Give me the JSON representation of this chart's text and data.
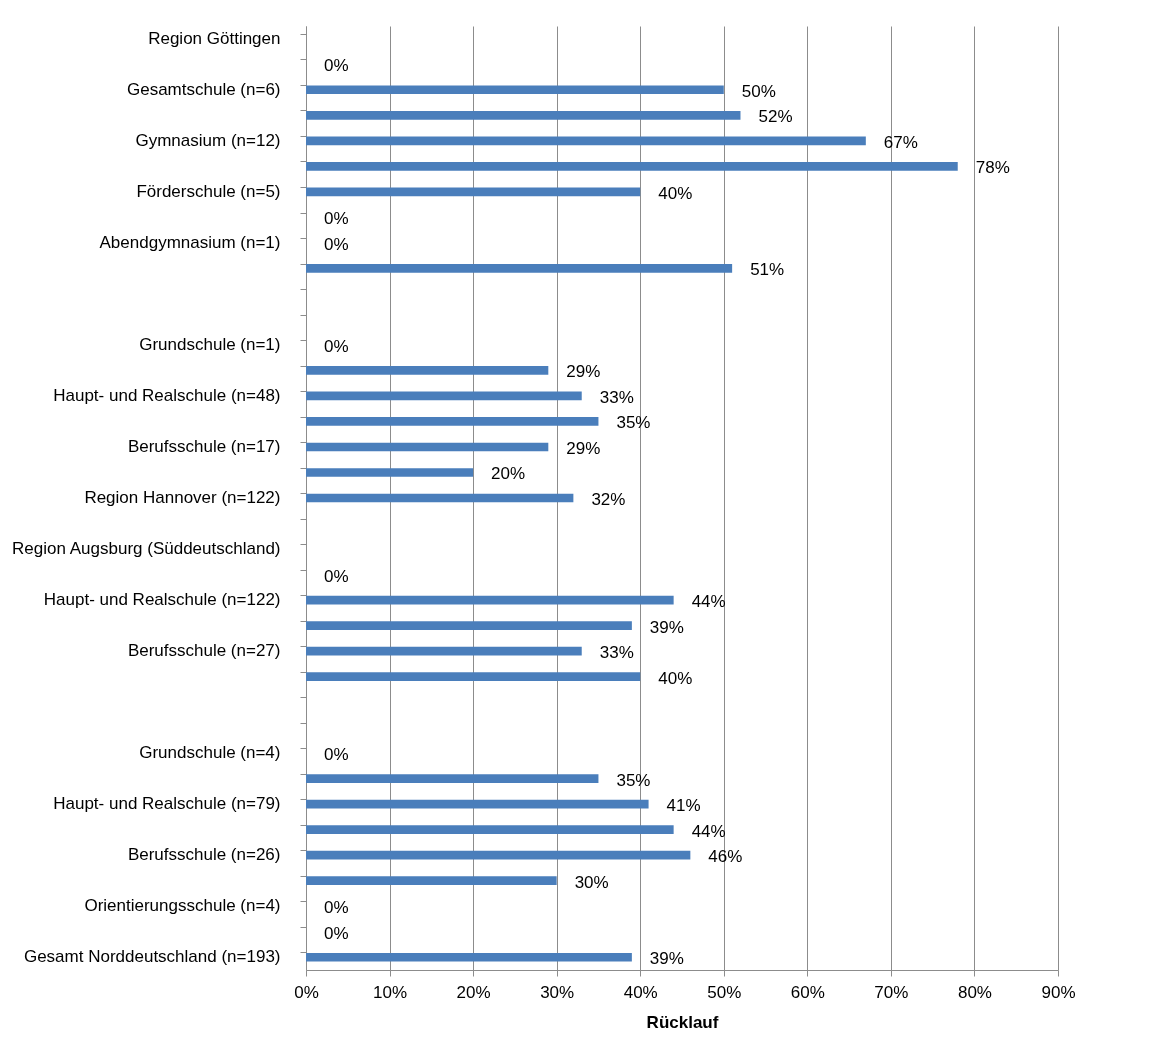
{
  "chart_data": {
    "type": "bar",
    "orientation": "horizontal",
    "xlabel": "Rücklauf",
    "categories": [
      "Region Göttingen",
      null,
      "Gesamtschule (n=6)",
      null,
      "Gymnasium (n=12)",
      null,
      "Förderschule (n=5)",
      null,
      "Abendgymnasium (n=1)",
      null,
      null,
      null,
      "Grundschule (n=1)",
      null,
      "Haupt- und Realschule (n=48)",
      null,
      "Berufsschule (n=17)",
      null,
      "Region Hannover (n=122)",
      null,
      "Region Augsburg (Süddeutschland)",
      null,
      "Haupt- und Realschule (n=122)",
      null,
      "Berufsschule (n=27)",
      null,
      null,
      null,
      "Grundschule (n=4)",
      null,
      "Haupt- und Realschule (n=79)",
      null,
      "Berufsschule (n=26)",
      null,
      "Orientierungsschule (n=4)",
      null,
      "Gesamt Norddeutschland (n=193)"
    ],
    "values": [
      null,
      0,
      50,
      52,
      67,
      78,
      40,
      0,
      0,
      51,
      null,
      null,
      0,
      29,
      33,
      35,
      29,
      20,
      32,
      null,
      null,
      0,
      44,
      39,
      33,
      40,
      null,
      null,
      0,
      35,
      41,
      44,
      46,
      30,
      0,
      0,
      39
    ],
    "value_labels": [
      null,
      "0%",
      "50%",
      "52%",
      "67%",
      "78%",
      "40%",
      "0%",
      "0%",
      "51%",
      null,
      null,
      "0%",
      "29%",
      "33%",
      "35%",
      "29%",
      "20%",
      "32%",
      null,
      null,
      "0%",
      "44%",
      "39%",
      "33%",
      "40%",
      null,
      null,
      "0%",
      "35%",
      "41%",
      "44%",
      "46%",
      "30%",
      "0%",
      "0%",
      "39%"
    ],
    "color": "#4a7ebb",
    "xlim": [
      0,
      90
    ],
    "xticks": [
      {
        "value": 0,
        "label": "0%"
      },
      {
        "value": 10,
        "label": "10%"
      },
      {
        "value": 20,
        "label": "20%"
      },
      {
        "value": 30,
        "label": "30%"
      },
      {
        "value": 40,
        "label": "40%"
      },
      {
        "value": 50,
        "label": "50%"
      },
      {
        "value": 60,
        "label": "60%"
      },
      {
        "value": 70,
        "label": "70%"
      },
      {
        "value": 80,
        "label": "80%"
      },
      {
        "value": 90,
        "label": "90%"
      }
    ],
    "grid": "x"
  }
}
